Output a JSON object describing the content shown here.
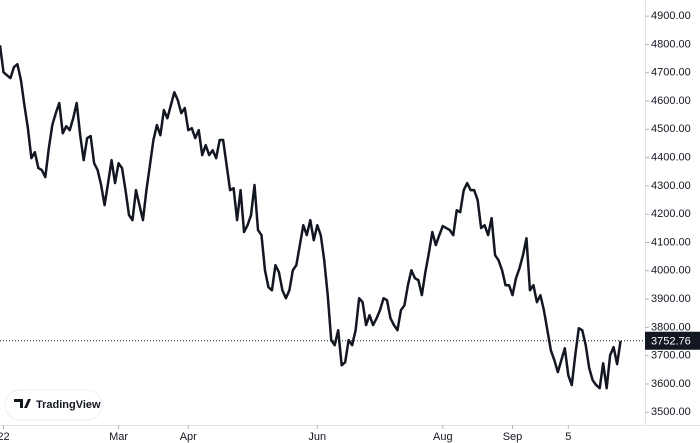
{
  "chart_data": {
    "type": "line",
    "color": "#131722",
    "grid": false,
    "watermark": "TradingView",
    "values": [
      4797,
      4702,
      4691,
      4681,
      4720,
      4730,
      4674,
      4585,
      4504,
      4398,
      4419,
      4363,
      4356,
      4331,
      4433,
      4515,
      4557,
      4593,
      4486,
      4511,
      4497,
      4539,
      4593,
      4479,
      4391,
      4469,
      4476,
      4380,
      4356,
      4303,
      4232,
      4310,
      4391,
      4310,
      4380,
      4363,
      4285,
      4197,
      4179,
      4285,
      4232,
      4179,
      4285,
      4373,
      4462,
      4515,
      4479,
      4568,
      4539,
      4585,
      4631,
      4603,
      4557,
      4575,
      4497,
      4504,
      4469,
      4497,
      4409,
      4444,
      4409,
      4426,
      4398,
      4462,
      4462,
      4373,
      4285,
      4292,
      4179,
      4285,
      4137,
      4161,
      4197,
      4303,
      4144,
      4126,
      4002,
      3942,
      3931,
      4020,
      3995,
      3931,
      3903,
      3931,
      4002,
      4020,
      4091,
      4161,
      4126,
      4179,
      4108,
      4161,
      4126,
      4037,
      3914,
      3755,
      3737,
      3790,
      3666,
      3677,
      3755,
      3737,
      3790,
      3903,
      3889,
      3808,
      3843,
      3808,
      3832,
      3861,
      3903,
      3896,
      3832,
      3808,
      3790,
      3861,
      3878,
      3949,
      4002,
      3974,
      3967,
      3914,
      3995,
      4062,
      4137,
      4091,
      4126,
      4158,
      4151,
      4144,
      4126,
      4214,
      4207,
      4285,
      4310,
      4285,
      4285,
      4250,
      4151,
      4161,
      4126,
      4186,
      4055,
      4037,
      4002,
      3949,
      3949,
      3914,
      3974,
      4009,
      4055,
      4115,
      3931,
      3949,
      3889,
      3914,
      3861,
      3790,
      3719,
      3684,
      3642,
      3684,
      3726,
      3631,
      3596,
      3702,
      3797,
      3790,
      3737,
      3656,
      3613,
      3596,
      3585,
      3673,
      3585,
      3702,
      3730,
      3670,
      3752.76
    ],
    "xlim": [
      0,
      185
    ],
    "xticks": [
      {
        "value": 1,
        "label": "22"
      },
      {
        "value": 34,
        "label": "Mar"
      },
      {
        "value": 54,
        "label": "Apr"
      },
      {
        "value": 91,
        "label": "Jun"
      },
      {
        "value": 127,
        "label": "Aug"
      },
      {
        "value": 147,
        "label": "Sep"
      },
      {
        "value": 163,
        "label": "5"
      }
    ],
    "ylim": [
      3455,
      4957
    ],
    "yticks": [
      {
        "value": 3500,
        "label": "3500.00"
      },
      {
        "value": 3600,
        "label": "3600.00"
      },
      {
        "value": 3700,
        "label": "3700.00"
      },
      {
        "value": 3800,
        "label": "3800.00"
      },
      {
        "value": 3900,
        "label": "3900.00"
      },
      {
        "value": 4000,
        "label": "4000.00"
      },
      {
        "value": 4100,
        "label": "4100.00"
      },
      {
        "value": 4200,
        "label": "4200.00"
      },
      {
        "value": 4300,
        "label": "4300.00"
      },
      {
        "value": 4400,
        "label": "4400.00"
      },
      {
        "value": 4500,
        "label": "4500.00"
      },
      {
        "value": 4600,
        "label": "4600.00"
      },
      {
        "value": 4700,
        "label": "4700.00"
      },
      {
        "value": 4800,
        "label": "4800.00"
      },
      {
        "value": 4900,
        "label": "4900.00"
      }
    ]
  }
}
